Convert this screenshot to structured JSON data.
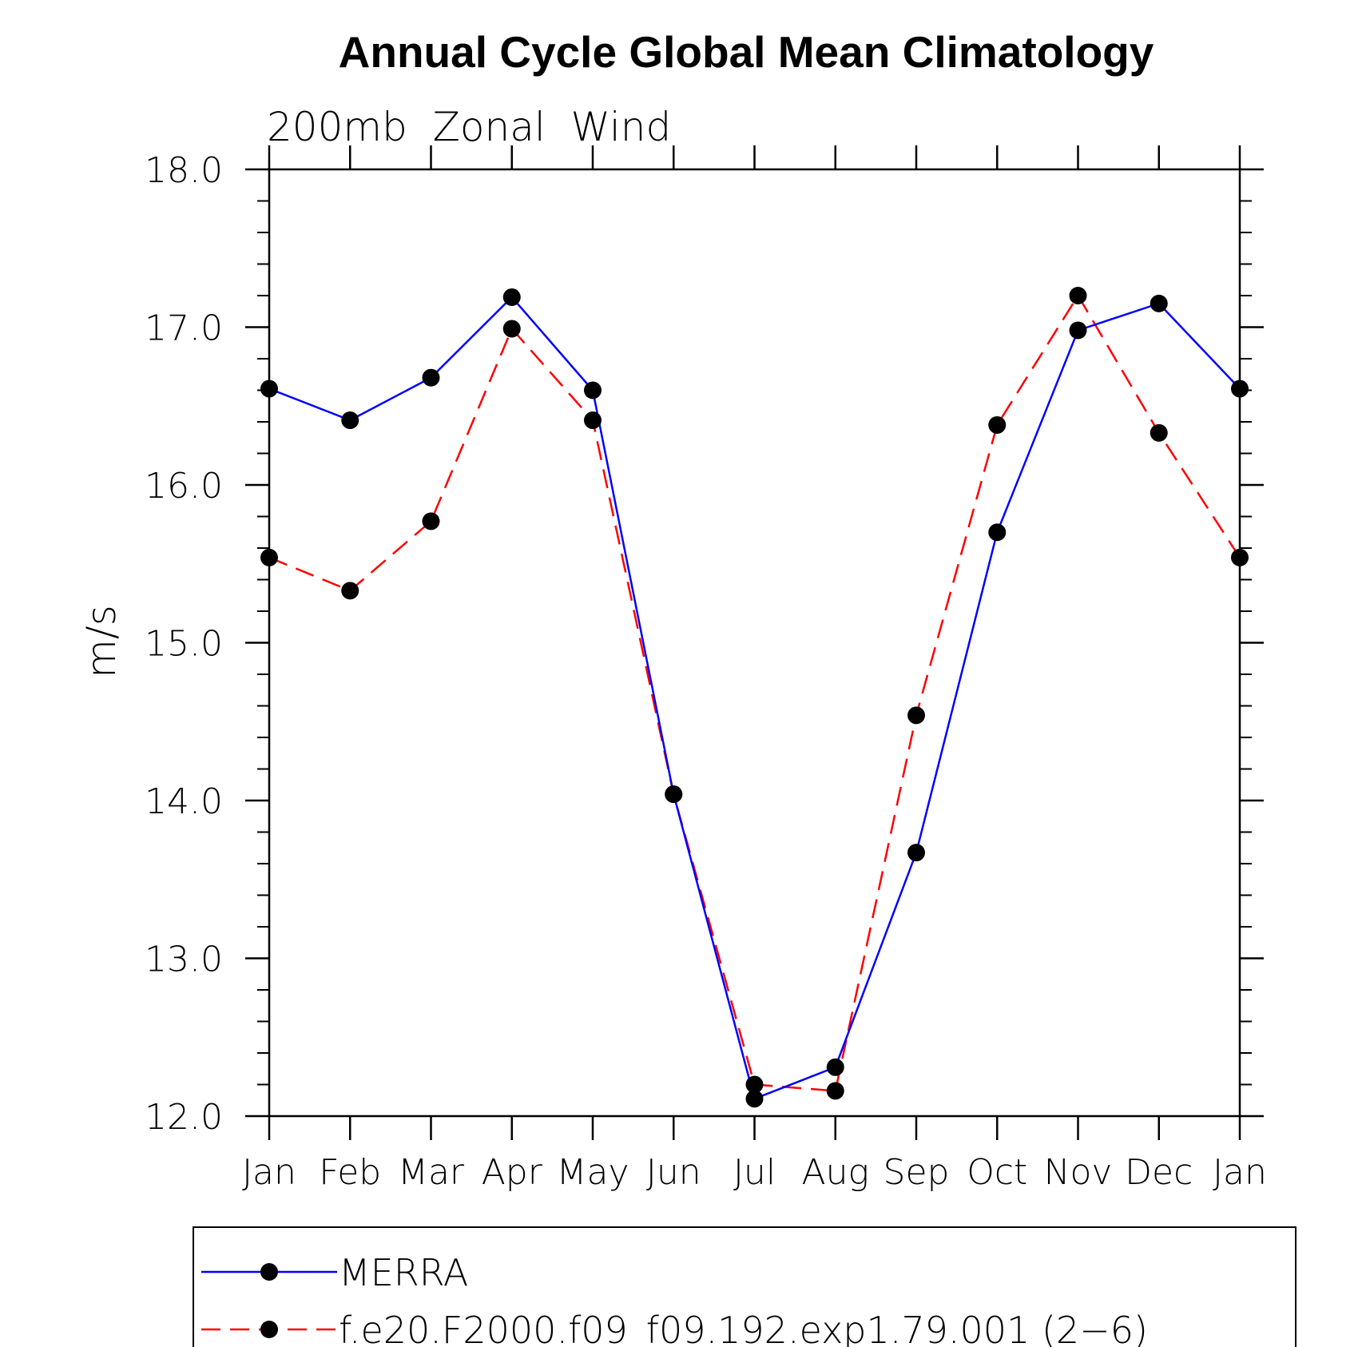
{
  "chart_data": {
    "type": "line",
    "title": "Annual Cycle Global Mean Climatology",
    "subtitle": "200mb  Zonal  Wind",
    "ylabel": "m/s",
    "xlabel": "",
    "categories": [
      "Jan",
      "Feb",
      "Mar",
      "Apr",
      "May",
      "Jun",
      "Jul",
      "Aug",
      "Sep",
      "Oct",
      "Nov",
      "Dec",
      "Jan"
    ],
    "ylim": [
      12.0,
      18.0
    ],
    "yticks": [
      "12.0",
      "13.0",
      "14.0",
      "15.0",
      "16.0",
      "17.0",
      "18.0"
    ],
    "series": [
      {
        "name": "MERRA",
        "color": "#0000ff",
        "style": "solid",
        "values": [
          16.61,
          16.41,
          16.68,
          17.19,
          16.6,
          14.04,
          12.11,
          12.31,
          13.67,
          15.7,
          16.98,
          17.15,
          16.61
        ]
      },
      {
        "name": "f.e20.F2000.f09_f09.192.exp1.79.001 (2−6)",
        "color": "#ff0000",
        "style": "dashed",
        "values": [
          15.54,
          15.33,
          15.77,
          16.99,
          16.41,
          14.04,
          12.2,
          12.16,
          14.54,
          16.38,
          17.2,
          16.33,
          15.54
        ]
      }
    ],
    "grid": false,
    "legend_position": "bottom"
  }
}
